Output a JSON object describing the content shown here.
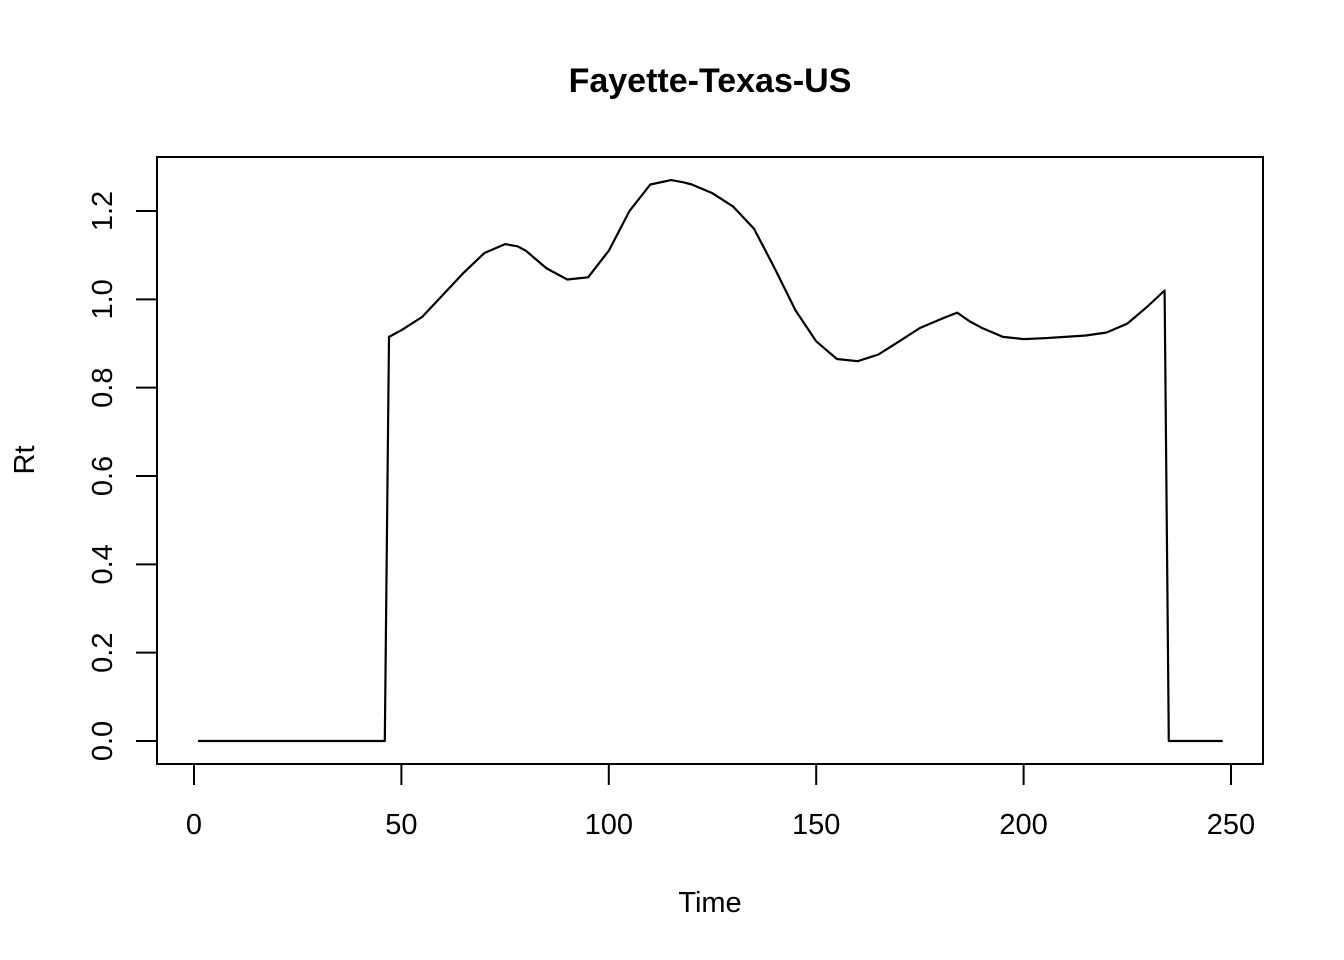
{
  "chart_data": {
    "type": "line",
    "title": "Fayette-Texas-US",
    "xlabel": "Time",
    "ylabel": "Rt",
    "xlim": [
      0,
      250
    ],
    "ylim": [
      0,
      1.25
    ],
    "x_ticks": [
      0,
      50,
      100,
      150,
      200,
      250
    ],
    "y_ticks": [
      0.0,
      0.2,
      0.4,
      0.6,
      0.8,
      1.0,
      1.2
    ],
    "x_tick_labels": [
      "0",
      "50",
      "100",
      "150",
      "200",
      "250"
    ],
    "y_tick_labels": [
      "0.0",
      "0.2",
      "0.4",
      "0.6",
      "0.8",
      "1.0",
      "1.2"
    ],
    "grid": false,
    "legend": "none",
    "line_color": "#000000",
    "series": [
      {
        "x": [
          1,
          10,
          20,
          30,
          40,
          46,
          47,
          50,
          55,
          60,
          65,
          70,
          75,
          78,
          80,
          85,
          90,
          95,
          100,
          105,
          110,
          115,
          118,
          120,
          125,
          130,
          135,
          140,
          145,
          150,
          155,
          160,
          165,
          170,
          175,
          180,
          184,
          187,
          190,
          195,
          200,
          205,
          210,
          215,
          220,
          225,
          230,
          234,
          235,
          240,
          248
        ],
        "y": [
          0,
          0,
          0,
          0,
          0,
          0,
          0.915,
          0.93,
          0.96,
          1.01,
          1.06,
          1.105,
          1.125,
          1.12,
          1.11,
          1.07,
          1.045,
          1.05,
          1.11,
          1.2,
          1.26,
          1.27,
          1.265,
          1.26,
          1.24,
          1.21,
          1.16,
          1.07,
          0.975,
          0.905,
          0.865,
          0.86,
          0.875,
          0.905,
          0.935,
          0.955,
          0.97,
          0.95,
          0.935,
          0.915,
          0.91,
          0.912,
          0.915,
          0.918,
          0.925,
          0.945,
          0.985,
          1.02,
          0,
          0,
          0
        ]
      }
    ]
  }
}
